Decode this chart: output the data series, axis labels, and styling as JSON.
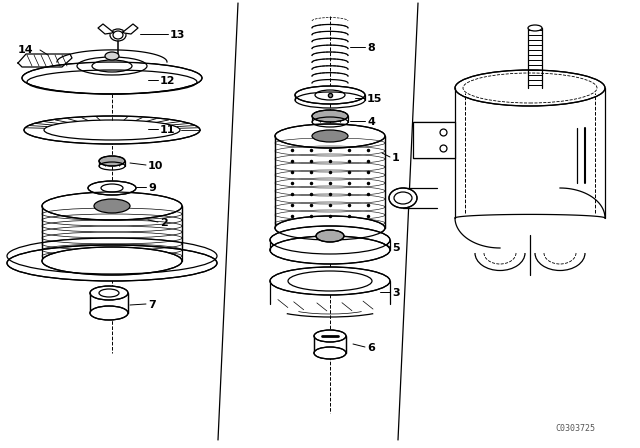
{
  "bg_color": "#ffffff",
  "line_color": "#000000",
  "watermark": "C0303725"
}
